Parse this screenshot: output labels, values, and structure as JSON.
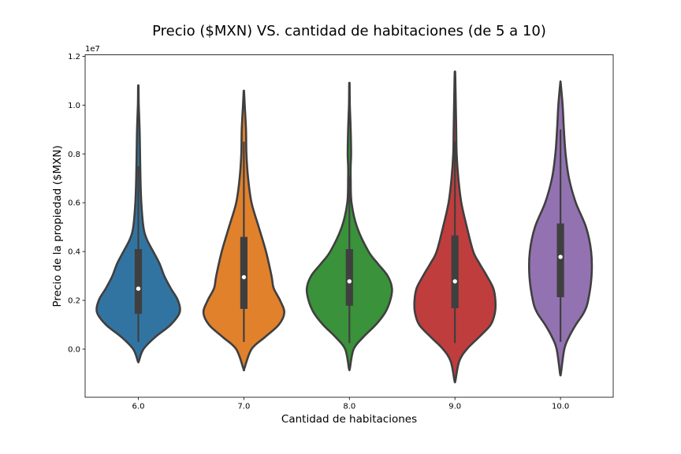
{
  "chart_data": {
    "type": "violin",
    "title": "Precio ($MXN) VS. cantidad de habitaciones (de 5 a 10)",
    "xlabel": "Cantidad de habitaciones",
    "ylabel": "Precio de la propiedad ($MXN)",
    "y_offset_label": "1e7",
    "y_unit_scale": 10000000,
    "ylim": [
      -2000000,
      12200000
    ],
    "yticks": [
      0,
      2000000,
      4000000,
      6000000,
      8000000,
      10000000,
      12000000
    ],
    "ytick_labels": [
      "0.0",
      "0.2",
      "0.4",
      "0.6",
      "0.8",
      "1.0",
      "1.2"
    ],
    "grid": false,
    "categories": [
      "6.0",
      "7.0",
      "8.0",
      "9.0",
      "10.0"
    ],
    "colors": [
      "#3274a1",
      "#e1812c",
      "#3a923a",
      "#c03d3e",
      "#9372b2"
    ],
    "series": [
      {
        "category": "6.0",
        "median": 2480000,
        "q1": 1450000,
        "q3": 4100000,
        "whisker_low": 300000,
        "whisker_high": 7500000,
        "density": [
          [
            -500000,
            0.01
          ],
          [
            0,
            0.12
          ],
          [
            500000,
            0.4
          ],
          [
            1000000,
            0.76
          ],
          [
            1500000,
            0.97
          ],
          [
            2000000,
            0.93
          ],
          [
            2500000,
            0.76
          ],
          [
            3000000,
            0.61
          ],
          [
            3500000,
            0.5
          ],
          [
            4000000,
            0.35
          ],
          [
            4500000,
            0.2
          ],
          [
            5000000,
            0.12
          ],
          [
            6000000,
            0.07
          ],
          [
            7000000,
            0.05
          ],
          [
            8000000,
            0.04
          ],
          [
            9000000,
            0.03
          ],
          [
            10000000,
            0.01
          ],
          [
            10750000,
            0.005
          ]
        ]
      },
      {
        "category": "7.0",
        "median": 2950000,
        "q1": 1650000,
        "q3": 4600000,
        "whisker_low": 300000,
        "whisker_high": 8500000,
        "density": [
          [
            -800000,
            0.01
          ],
          [
            0,
            0.18
          ],
          [
            500000,
            0.5
          ],
          [
            1000000,
            0.82
          ],
          [
            1500000,
            0.95
          ],
          [
            2000000,
            0.85
          ],
          [
            2500000,
            0.7
          ],
          [
            3000000,
            0.65
          ],
          [
            4000000,
            0.52
          ],
          [
            5000000,
            0.35
          ],
          [
            6000000,
            0.18
          ],
          [
            7000000,
            0.1
          ],
          [
            8000000,
            0.06
          ],
          [
            9000000,
            0.05
          ],
          [
            10000000,
            0.02
          ],
          [
            10550000,
            0.005
          ]
        ]
      },
      {
        "category": "8.0",
        "median": 2780000,
        "q1": 1780000,
        "q3": 4100000,
        "whisker_low": 250000,
        "whisker_high": 7100000,
        "density": [
          [
            -800000,
            0.01
          ],
          [
            0,
            0.1
          ],
          [
            500000,
            0.33
          ],
          [
            1000000,
            0.62
          ],
          [
            1500000,
            0.84
          ],
          [
            2000000,
            0.96
          ],
          [
            2500000,
            1.0
          ],
          [
            3000000,
            0.9
          ],
          [
            3500000,
            0.67
          ],
          [
            4000000,
            0.45
          ],
          [
            5000000,
            0.18
          ],
          [
            6000000,
            0.05
          ],
          [
            7000000,
            0.03
          ],
          [
            7500000,
            0.03
          ],
          [
            8000000,
            0.04
          ],
          [
            9000000,
            0.03
          ],
          [
            10000000,
            0.01
          ],
          [
            10850000,
            0.005
          ]
        ]
      },
      {
        "category": "9.0",
        "median": 2780000,
        "q1": 1680000,
        "q3": 4660000,
        "whisker_low": 250000,
        "whisker_high": 8500000,
        "density": [
          [
            -1300000,
            0.01
          ],
          [
            -500000,
            0.1
          ],
          [
            0,
            0.28
          ],
          [
            500000,
            0.57
          ],
          [
            1000000,
            0.84
          ],
          [
            1500000,
            0.94
          ],
          [
            2000000,
            0.95
          ],
          [
            2500000,
            0.9
          ],
          [
            3000000,
            0.75
          ],
          [
            3500000,
            0.58
          ],
          [
            4000000,
            0.43
          ],
          [
            5000000,
            0.28
          ],
          [
            6000000,
            0.15
          ],
          [
            7000000,
            0.08
          ],
          [
            8000000,
            0.04
          ],
          [
            9000000,
            0.03
          ],
          [
            10000000,
            0.02
          ],
          [
            11000000,
            0.01
          ],
          [
            11350000,
            0.005
          ]
        ]
      },
      {
        "category": "10.0",
        "median": 3780000,
        "q1": 2130000,
        "q3": 5150000,
        "whisker_low": 300000,
        "whisker_high": 9000000,
        "density": [
          [
            -1000000,
            0.01
          ],
          [
            0,
            0.09
          ],
          [
            500000,
            0.2
          ],
          [
            1000000,
            0.36
          ],
          [
            1500000,
            0.55
          ],
          [
            2000000,
            0.65
          ],
          [
            3000000,
            0.73
          ],
          [
            4000000,
            0.72
          ],
          [
            5000000,
            0.6
          ],
          [
            6000000,
            0.36
          ],
          [
            7000000,
            0.2
          ],
          [
            8000000,
            0.12
          ],
          [
            9000000,
            0.08
          ],
          [
            10000000,
            0.05
          ],
          [
            10900000,
            0.005
          ]
        ]
      }
    ]
  }
}
